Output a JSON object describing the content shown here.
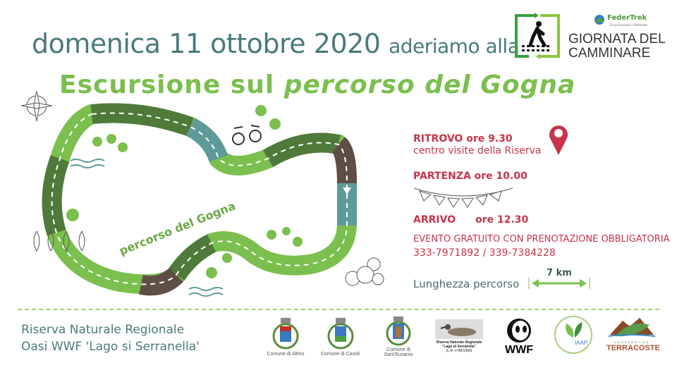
{
  "header": {
    "date_prefix": "domenica 11 ottobre 2020",
    "date_suffix": "aderiamo alla",
    "title_plain": "Escursione sul",
    "title_italic": "percorso del Gogna"
  },
  "event_logo": {
    "line1": "GIORNATA DEL",
    "line2": "CAMMINARE",
    "federtrek": "FederTrek",
    "federtrek_sub": "Escursionismo e Ambiente"
  },
  "map": {
    "trail_label": "percorso del Gogna",
    "colors": {
      "light_green": "#7bbf4e",
      "dark_green": "#4f7a3a",
      "teal": "#5f9a9a",
      "brown": "#5e4e46"
    }
  },
  "info": {
    "ritrovo": "RITROVO ore 9.30",
    "ritrovo_place": "centro visite della Riserva",
    "partenza": "PARTENZA ore 10.00",
    "arrivo_label": "ARRIVO",
    "arrivo_time": "ore 12.30",
    "evento": "EVENTO GRATUITO CON PRENOTAZIONE OBBLIGATORIA",
    "phones": "333-7971892 / 339-7384228",
    "length_label": "Lunghezza percorso",
    "length_value": "7 km",
    "accent": "#c8334a"
  },
  "footer": {
    "reserve_line1": "Riserva Naturale Regionale",
    "reserve_line2": "Oasi WWF 'Lago si Serranella'",
    "logos": [
      {
        "caption": "Comune di Altino"
      },
      {
        "caption": "Comune di Casoli"
      },
      {
        "caption": "Comune di Sant'Eusanio"
      },
      {
        "caption": "Riserva Naturale Regionale \"Lago di Serranella\"",
        "sub": "(L.R. n°68/1990)"
      },
      {
        "caption": "WWF"
      },
      {
        "caption": "IAAP"
      },
      {
        "caption": "TERRACOSTE",
        "sub": "COOPERATIVA"
      }
    ]
  }
}
